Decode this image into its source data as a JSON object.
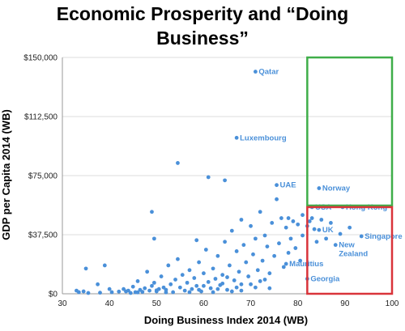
{
  "chart_data": {
    "type": "scatter",
    "title_lines": [
      "Economic Prosperity and “Doing",
      "Business”"
    ],
    "xlabel": "Doing Business Index 2014 (WB)",
    "ylabel": "GDP per Capita 2014 (WB)",
    "xlim": [
      30,
      100
    ],
    "ylim": [
      0,
      150000
    ],
    "x_ticks": [
      30,
      40,
      50,
      60,
      70,
      80,
      90,
      100
    ],
    "y_ticks": [
      0,
      37500,
      75000,
      112500,
      150000
    ],
    "x_tick_labels": [
      "30",
      "40",
      "50",
      "60",
      "70",
      "80",
      "90",
      "100"
    ],
    "y_tick_labels": [
      "$0",
      "$37,500",
      "$75,000",
      "$112,500",
      "$150,000"
    ],
    "grid": "horizontal",
    "point_color": "#4a90d9",
    "highlight_boxes": [
      {
        "color": "#3fae49",
        "x": [
          82,
          100
        ],
        "y": [
          56000,
          150000
        ]
      },
      {
        "color": "#d9343a",
        "x": [
          82,
          100
        ],
        "y": [
          0,
          55000
        ]
      }
    ],
    "labeled_points": [
      {
        "label": "Qatar",
        "x": 71.0,
        "y": 141000
      },
      {
        "label": "Luxembourg",
        "x": 67.0,
        "y": 99000
      },
      {
        "label": "UAE",
        "x": 75.5,
        "y": 69000
      },
      {
        "label": "Norway",
        "x": 84.5,
        "y": 67000
      },
      {
        "label": "USA",
        "x": 83.0,
        "y": 55000
      },
      {
        "label": "Hong Kong",
        "x": 89.5,
        "y": 55000
      },
      {
        "label": "UK",
        "x": 84.5,
        "y": 40500
      },
      {
        "label": "Singapore",
        "x": 93.5,
        "y": 36500
      },
      {
        "label": "New\nZealand",
        "x": 88.0,
        "y": 31000
      },
      {
        "label": "Mauritius",
        "x": 77.5,
        "y": 19000
      },
      {
        "label": "Georgia",
        "x": 82.0,
        "y": 9500
      }
    ],
    "points": [
      [
        33,
        2000
      ],
      [
        33.5,
        1000
      ],
      [
        34.5,
        1500
      ],
      [
        35,
        16000
      ],
      [
        35.5,
        500
      ],
      [
        37.5,
        6000
      ],
      [
        39,
        18000
      ],
      [
        40,
        3000
      ],
      [
        40.5,
        1000
      ],
      [
        43,
        3000
      ],
      [
        43.5,
        1500
      ],
      [
        44,
        2000
      ],
      [
        44.5,
        500
      ],
      [
        45,
        4500
      ],
      [
        45.5,
        1000
      ],
      [
        46,
        8000
      ],
      [
        46.5,
        2500
      ],
      [
        47,
        1200
      ],
      [
        47.5,
        3500
      ],
      [
        48,
        14000
      ],
      [
        48.5,
        2000
      ],
      [
        49,
        5000
      ],
      [
        49,
        52000
      ],
      [
        49.5,
        35000
      ],
      [
        49.5,
        7000
      ],
      [
        50,
        1500
      ],
      [
        50.5,
        3000
      ],
      [
        51,
        11000
      ],
      [
        51.5,
        4000
      ],
      [
        52,
        2500
      ],
      [
        52.5,
        18000
      ],
      [
        53,
        6000
      ],
      [
        53.5,
        1000
      ],
      [
        54,
        9000
      ],
      [
        54.5,
        83000
      ],
      [
        54.5,
        22000
      ],
      [
        55,
        4000
      ],
      [
        55.5,
        12000
      ],
      [
        56,
        2000
      ],
      [
        56.5,
        7000
      ],
      [
        57,
        15000
      ],
      [
        57.5,
        3000
      ],
      [
        58,
        10000
      ],
      [
        58.5,
        5000
      ],
      [
        58.5,
        34000
      ],
      [
        59,
        20000
      ],
      [
        59.5,
        1500
      ],
      [
        60,
        13000
      ],
      [
        60.5,
        28000
      ],
      [
        61,
        7500
      ],
      [
        61,
        74000
      ],
      [
        61.5,
        3500
      ],
      [
        62,
        16000
      ],
      [
        62.5,
        9500
      ],
      [
        63,
        24000
      ],
      [
        63.5,
        5500
      ],
      [
        64,
        12000
      ],
      [
        64.5,
        33000
      ],
      [
        64.5,
        72000
      ],
      [
        65,
        2500
      ],
      [
        65.5,
        18000
      ],
      [
        66,
        40000
      ],
      [
        66.5,
        8500
      ],
      [
        67,
        27000
      ],
      [
        67.5,
        14000
      ],
      [
        68,
        6000
      ],
      [
        68,
        47000
      ],
      [
        68.5,
        31000
      ],
      [
        69,
        20000
      ],
      [
        69.5,
        11000
      ],
      [
        70,
        43000
      ],
      [
        70.5,
        25000
      ],
      [
        71,
        4000
      ],
      [
        71,
        35000
      ],
      [
        71.5,
        15000
      ],
      [
        72,
        52000
      ],
      [
        72.5,
        21000
      ],
      [
        73,
        37000
      ],
      [
        73,
        9000
      ],
      [
        73.5,
        30000
      ],
      [
        74,
        13000
      ],
      [
        74.5,
        45000
      ],
      [
        75,
        24000
      ],
      [
        75.5,
        60000
      ],
      [
        76,
        32000
      ],
      [
        76.5,
        48000
      ],
      [
        77,
        17000
      ],
      [
        77.5,
        42000
      ],
      [
        78,
        26000
      ],
      [
        78,
        48000
      ],
      [
        78.5,
        35000
      ],
      [
        79,
        46000
      ],
      [
        79.5,
        29000
      ],
      [
        80,
        44000
      ],
      [
        80.5,
        21000
      ],
      [
        81,
        37000
      ],
      [
        81,
        50000
      ],
      [
        82,
        43000
      ],
      [
        82.5,
        46000
      ],
      [
        83,
        48000
      ],
      [
        83.5,
        41000
      ],
      [
        84,
        33000
      ],
      [
        85,
        47000
      ],
      [
        86,
        35000
      ],
      [
        87,
        45000
      ],
      [
        89,
        38000
      ],
      [
        91,
        42000
      ],
      [
        57,
        1000
      ],
      [
        59,
        2500
      ],
      [
        62,
        1000
      ],
      [
        63,
        3000
      ],
      [
        64,
        6500
      ],
      [
        66,
        1500
      ],
      [
        67,
        4000
      ],
      [
        68,
        2000
      ],
      [
        70,
        6000
      ],
      [
        52,
        900
      ],
      [
        50,
        2200
      ],
      [
        46,
        900
      ],
      [
        42,
        1400
      ],
      [
        38,
        700
      ],
      [
        60,
        5000
      ],
      [
        65,
        10500
      ],
      [
        72,
        8000
      ],
      [
        74,
        3500
      ]
    ]
  }
}
